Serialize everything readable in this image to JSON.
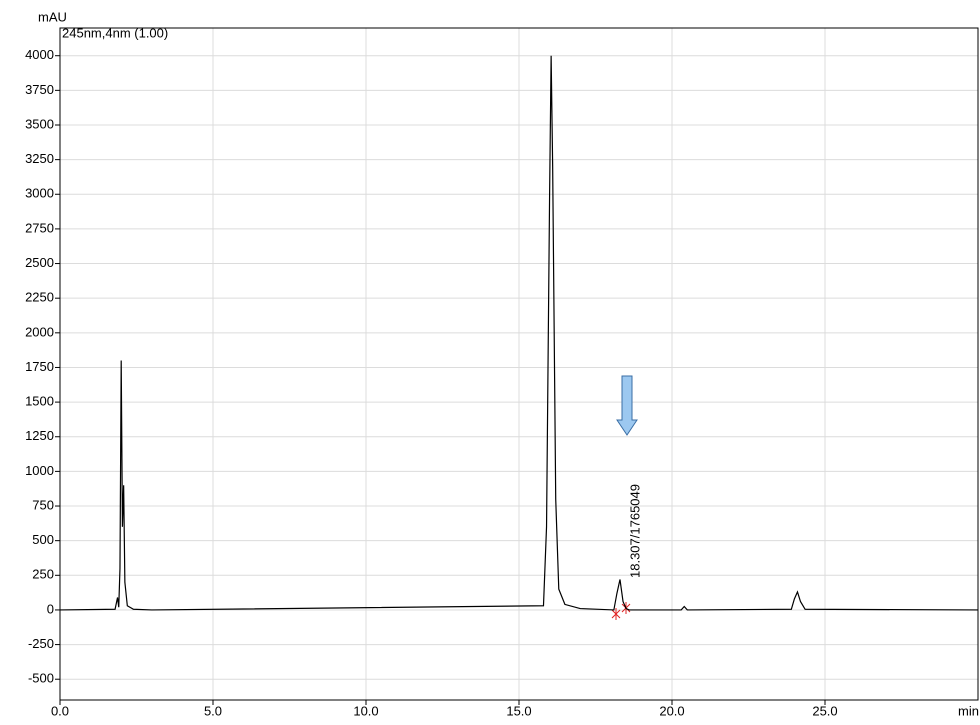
{
  "chart_data": {
    "type": "line",
    "subtitle": "245nm,4nm (1.00)",
    "x_label": "min",
    "y_label": "mAU",
    "peak_label": "18.307/1765049",
    "color": "#000000",
    "grid": true,
    "x": [
      0,
      1.8,
      1.88,
      1.92,
      1.96,
      2.0,
      2.04,
      2.08,
      2.12,
      2.2,
      2.4,
      3,
      15.8,
      15.9,
      16.0,
      16.05,
      16.1,
      16.2,
      16.3,
      16.5,
      17,
      18.1,
      18.2,
      18.3,
      18.4,
      18.5,
      18.6,
      20.3,
      20.4,
      20.5,
      23.9,
      24.0,
      24.1,
      24.2,
      24.35,
      30
    ],
    "values": [
      0,
      5,
      90,
      20,
      300,
      1800,
      600,
      900,
      200,
      30,
      5,
      0,
      30,
      600,
      3000,
      4000,
      3200,
      800,
      150,
      40,
      10,
      0,
      120,
      220,
      60,
      10,
      0,
      0,
      25,
      0,
      5,
      80,
      130,
      60,
      5,
      0
    ],
    "xlim": [
      0,
      30
    ],
    "ylim": [
      -650,
      4200
    ],
    "xticks": [
      {
        "value": 0,
        "label": "0.0"
      },
      {
        "value": 5,
        "label": "5.0"
      },
      {
        "value": 10,
        "label": "10.0"
      },
      {
        "value": 15,
        "label": "15.0"
      },
      {
        "value": 20,
        "label": "20.0"
      },
      {
        "value": 25,
        "label": "25.0"
      }
    ],
    "yticks": [
      -500,
      -250,
      0,
      250,
      500,
      750,
      1000,
      1250,
      1500,
      1750,
      2000,
      2250,
      2500,
      2750,
      3000,
      3250,
      3500,
      3750,
      4000
    ]
  }
}
